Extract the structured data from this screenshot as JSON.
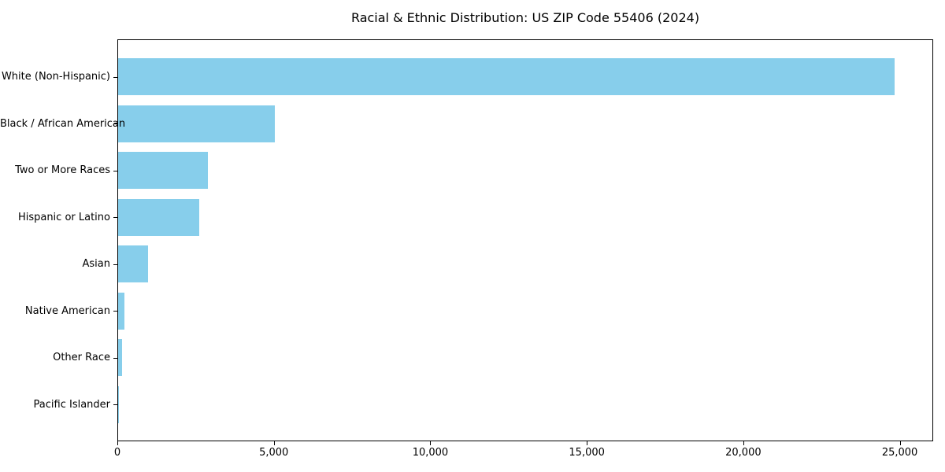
{
  "chart_data": {
    "type": "bar",
    "orientation": "horizontal",
    "title": "Racial & Ethnic Distribution: US ZIP Code 55406 (2024)",
    "categories": [
      "White (Non-Hispanic)",
      "Black / African American",
      "Two or More Races",
      "Hispanic or Latino",
      "Asian",
      "Native American",
      "Other Race",
      "Pacific Islander"
    ],
    "values": [
      24800,
      5000,
      2870,
      2600,
      950,
      200,
      130,
      20
    ],
    "xlabel": "",
    "ylabel": "",
    "xlim": [
      0,
      26000
    ],
    "xticks": [
      0,
      5000,
      10000,
      15000,
      20000,
      25000
    ],
    "xtick_labels": [
      "0",
      "5,000",
      "10,000",
      "15,000",
      "20,000",
      "25,000"
    ],
    "bar_color": "#87CEEB",
    "axis_color": "#000000",
    "text_color": "#000000",
    "grid": false,
    "legend": false
  }
}
